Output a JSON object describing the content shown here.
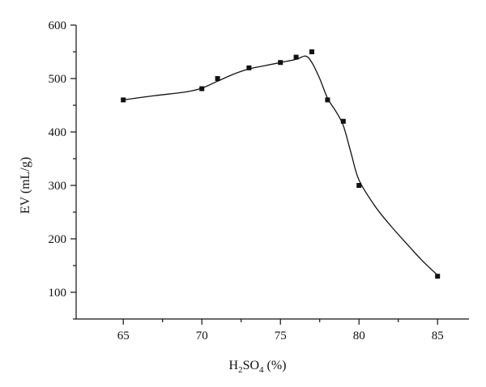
{
  "chart_data": {
    "type": "scatter",
    "xlabel": {
      "main": "H",
      "sub1": "2",
      "mid": "SO",
      "sub2": "4",
      "tail": " (%)"
    },
    "ylabel": "EV (mL/g)",
    "xlim": [
      62,
      87
    ],
    "ylim": [
      50,
      600
    ],
    "x_ticks": [
      65,
      70,
      75,
      80,
      85
    ],
    "y_ticks": [
      100,
      200,
      300,
      400,
      500,
      600
    ],
    "grid": false,
    "legend": "none",
    "series": [
      {
        "marker": "square",
        "points": [
          {
            "x": 65,
            "y": 460
          },
          {
            "x": 70,
            "y": 481
          },
          {
            "x": 71,
            "y": 500
          },
          {
            "x": 73,
            "y": 520
          },
          {
            "x": 75,
            "y": 530
          },
          {
            "x": 76,
            "y": 540
          },
          {
            "x": 77,
            "y": 550
          },
          {
            "x": 78,
            "y": 460
          },
          {
            "x": 79,
            "y": 420
          },
          {
            "x": 80,
            "y": 300
          },
          {
            "x": 85,
            "y": 130
          }
        ],
        "fit_curve": [
          {
            "x": 65,
            "y": 460
          },
          {
            "x": 67,
            "y": 468
          },
          {
            "x": 69,
            "y": 475
          },
          {
            "x": 70,
            "y": 482
          },
          {
            "x": 71,
            "y": 495
          },
          {
            "x": 72,
            "y": 508
          },
          {
            "x": 73,
            "y": 518
          },
          {
            "x": 74,
            "y": 524
          },
          {
            "x": 75,
            "y": 530
          },
          {
            "x": 76,
            "y": 536
          },
          {
            "x": 76.6,
            "y": 542
          },
          {
            "x": 77,
            "y": 530
          },
          {
            "x": 77.5,
            "y": 500
          },
          {
            "x": 78,
            "y": 463
          },
          {
            "x": 78.5,
            "y": 440
          },
          {
            "x": 79,
            "y": 412
          },
          {
            "x": 79.5,
            "y": 360
          },
          {
            "x": 80,
            "y": 310
          },
          {
            "x": 81,
            "y": 262
          },
          {
            "x": 82,
            "y": 225
          },
          {
            "x": 83,
            "y": 192
          },
          {
            "x": 84,
            "y": 160
          },
          {
            "x": 85,
            "y": 132
          }
        ]
      }
    ]
  }
}
